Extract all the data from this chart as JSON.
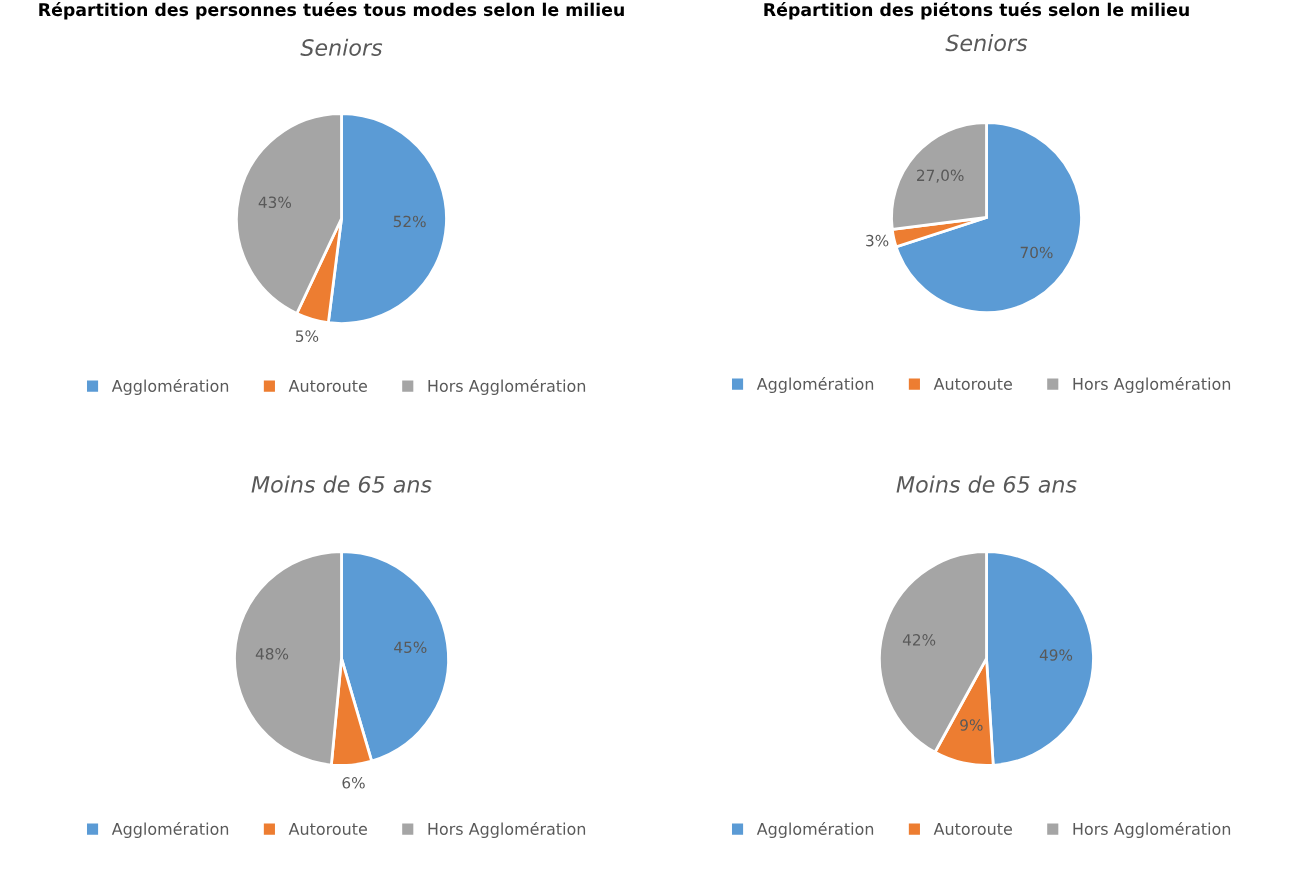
{
  "chart_data": [
    {
      "type": "pie",
      "title": "Seniors",
      "annotations": [
        "Répartition des personnes tuées tous modes selon le milieu"
      ],
      "categories": [
        "Agglomération",
        "Autoroute",
        "Hors Agglomération"
      ],
      "values": [
        52,
        5,
        43
      ],
      "colors": [
        "#5b9bd5",
        "#ed7d31",
        "#a5a5a5"
      ],
      "value_labels": [
        "52%",
        "5%",
        "43%"
      ],
      "legend": "bottom"
    },
    {
      "type": "pie",
      "title": "Seniors",
      "annotations": [
        "Répartition des piétons tués selon le milieu"
      ],
      "categories": [
        "Agglomération",
        "Autoroute",
        "Hors Agglomération"
      ],
      "values": [
        70,
        3,
        27.0
      ],
      "colors": [
        "#5b9bd5",
        "#ed7d31",
        "#a5a5a5"
      ],
      "value_labels": [
        "70%",
        "3%",
        "27,0%"
      ],
      "legend": "bottom"
    },
    {
      "type": "pie",
      "title": "Moins de 65 ans",
      "categories": [
        "Agglomération",
        "Autoroute",
        "Hors Agglomération"
      ],
      "values": [
        45,
        6,
        48
      ],
      "colors": [
        "#5b9bd5",
        "#ed7d31",
        "#a5a5a5"
      ],
      "value_labels": [
        "45%",
        "6%",
        "48%"
      ],
      "legend": "bottom"
    },
    {
      "type": "pie",
      "title": "Moins de 65 ans",
      "categories": [
        "Agglomération",
        "Autoroute",
        "Hors Agglomération"
      ],
      "values": [
        49,
        9,
        42
      ],
      "colors": [
        "#5b9bd5",
        "#ed7d31",
        "#a5a5a5"
      ],
      "value_labels": [
        "49%",
        "9%",
        "42%"
      ],
      "legend": "bottom"
    }
  ]
}
